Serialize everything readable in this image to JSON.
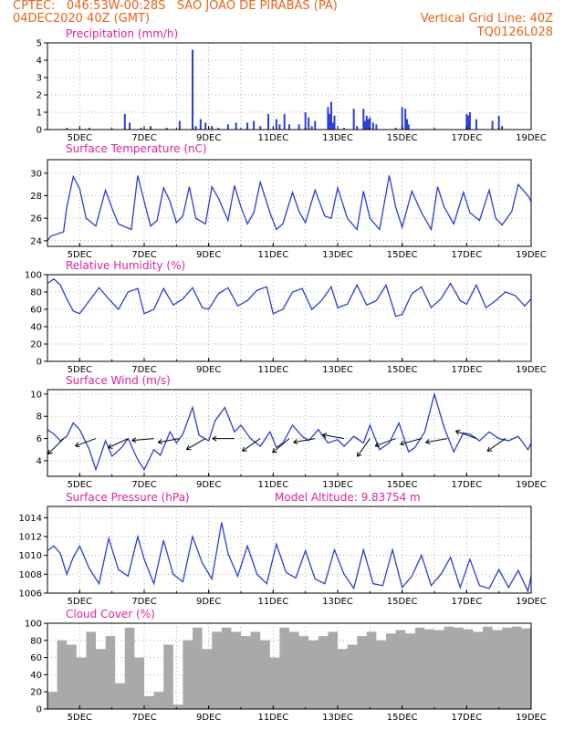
{
  "header": {
    "line1": "CPTEC:   046:53W-00:28S   SAO JOAO DE PIRABAS (PA)",
    "line2_left": "04DEC2020 40Z (GMT)",
    "line2_right": "Vertical Grid Line: 40Z",
    "code": "TQ0126L028",
    "model_altitude": "Model Altitude: 9.83754 m"
  },
  "colors": {
    "header": "#e8631a",
    "title": "#e0249a",
    "series": "#2a3fd4",
    "cloud": "#a9a9a9",
    "wind_arrow": "#000000"
  },
  "x_ticks": [
    "5DEC",
    "7DEC",
    "9DEC",
    "11DEC",
    "13DEC",
    "15DEC",
    "17DEC",
    "19DEC"
  ],
  "chart_data": [
    {
      "id": "precip",
      "type": "bar",
      "title": "Precipitation (mm/h)",
      "ylim": [
        0,
        5
      ],
      "yticks": [
        0,
        1,
        2,
        3,
        4,
        5
      ],
      "x_day_range": [
        4,
        19
      ],
      "x_ticks": [
        "5DEC",
        "7DEC",
        "9DEC",
        "11DEC",
        "13DEC",
        "15DEC",
        "17DEC",
        "19DEC"
      ],
      "series": [
        {
          "x": [
            4.6,
            5.3,
            6.4,
            6.55,
            6.9,
            7.2,
            7.7,
            8.1,
            8.5,
            8.6,
            8.75,
            8.9,
            9.1,
            9.3,
            9.6,
            9.85,
            10.2,
            10.4,
            10.6,
            10.85,
            11.1,
            11.2,
            11.35,
            11.5,
            11.8,
            12.0,
            12.1,
            12.2,
            12.3,
            12.7,
            12.75,
            12.8,
            12.85,
            12.9,
            13.2,
            13.5,
            13.6,
            13.8,
            13.85,
            13.9,
            13.95,
            14.0,
            14.1,
            14.2,
            14.8,
            15.0,
            15.1,
            15.15,
            15.2,
            17.0,
            17.05,
            17.1,
            17.3,
            17.8,
            18.0,
            18.1
          ],
          "values": [
            0.1,
            0.1,
            0.9,
            0.4,
            0.1,
            0.2,
            0.1,
            0.5,
            4.6,
            0.2,
            0.6,
            0.4,
            0.2,
            0.1,
            0.3,
            0.4,
            0.4,
            0.5,
            0.2,
            0.9,
            0.6,
            0.3,
            0.9,
            0.3,
            0.3,
            1.0,
            0.7,
            0.2,
            0.5,
            1.3,
            0.9,
            1.6,
            0.4,
            0.8,
            0.1,
            1.2,
            0.2,
            1.2,
            0.5,
            0.8,
            0.6,
            0.7,
            0.4,
            0.3,
            0.1,
            1.3,
            1.2,
            0.6,
            0.3,
            0.9,
            0.8,
            1.0,
            0.6,
            0.5,
            0.8,
            0.2
          ]
        }
      ]
    },
    {
      "id": "temp",
      "type": "line",
      "title": "Surface Temperature (nC)",
      "ylim": [
        23.5,
        31.2
      ],
      "yticks": [
        24,
        26,
        28,
        30
      ],
      "x_day_range": [
        4,
        19
      ],
      "x_ticks": [
        "5DEC",
        "7DEC",
        "9DEC",
        "11DEC",
        "13DEC",
        "15DEC",
        "17DEC",
        "19DEC"
      ],
      "series": [
        {
          "x": [
            4.0,
            4.1,
            4.3,
            4.5,
            4.6,
            4.8,
            5.0,
            5.2,
            5.5,
            5.8,
            6.0,
            6.2,
            6.6,
            6.8,
            7.0,
            7.2,
            7.4,
            7.6,
            7.8,
            8.0,
            8.2,
            8.4,
            8.6,
            8.9,
            9.1,
            9.3,
            9.6,
            9.8,
            10.0,
            10.2,
            10.4,
            10.6,
            10.9,
            11.1,
            11.3,
            11.6,
            11.8,
            12.0,
            12.3,
            12.6,
            12.8,
            13.0,
            13.3,
            13.6,
            13.8,
            14.0,
            14.3,
            14.6,
            14.8,
            15.0,
            15.3,
            15.6,
            15.9,
            16.1,
            16.3,
            16.6,
            16.9,
            17.1,
            17.4,
            17.7,
            17.9,
            18.1,
            18.4,
            18.6,
            18.9,
            19.0
          ],
          "values": [
            24.0,
            24.4,
            24.6,
            24.8,
            27.0,
            29.7,
            28.6,
            26.0,
            25.3,
            28.5,
            26.9,
            25.5,
            25.0,
            29.8,
            27.5,
            25.3,
            25.8,
            28.7,
            27.5,
            25.6,
            26.2,
            28.8,
            26.0,
            25.5,
            28.8,
            27.8,
            25.8,
            28.9,
            27.0,
            25.5,
            26.5,
            29.2,
            26.5,
            25.0,
            25.5,
            28.3,
            26.6,
            25.6,
            28.5,
            26.2,
            26.0,
            28.7,
            26.0,
            25.0,
            28.4,
            26.0,
            25.0,
            29.8,
            27.0,
            25.2,
            28.4,
            26.5,
            25.0,
            28.8,
            27.0,
            25.5,
            28.3,
            26.5,
            25.8,
            28.5,
            26.0,
            25.4,
            26.6,
            29.0,
            28.0,
            27.5
          ]
        }
      ]
    },
    {
      "id": "rh",
      "type": "line",
      "title": "Relative Humidity (%)",
      "ylim": [
        0,
        100
      ],
      "yticks": [
        0,
        20,
        40,
        60,
        80,
        100
      ],
      "x_day_range": [
        4,
        19
      ],
      "x_ticks": [
        "5DEC",
        "7DEC",
        "9DEC",
        "11DEC",
        "13DEC",
        "15DEC",
        "17DEC",
        "19DEC"
      ],
      "series": [
        {
          "x": [
            4.0,
            4.2,
            4.4,
            4.6,
            4.8,
            5.0,
            5.3,
            5.6,
            5.9,
            6.2,
            6.5,
            6.8,
            7.0,
            7.3,
            7.6,
            7.9,
            8.2,
            8.5,
            8.8,
            9.0,
            9.3,
            9.6,
            9.9,
            10.2,
            10.5,
            10.8,
            11.0,
            11.3,
            11.6,
            11.9,
            12.2,
            12.5,
            12.8,
            13.0,
            13.3,
            13.6,
            13.9,
            14.2,
            14.5,
            14.8,
            15.0,
            15.3,
            15.6,
            15.9,
            16.2,
            16.5,
            16.8,
            17.0,
            17.3,
            17.6,
            17.9,
            18.2,
            18.5,
            18.8,
            19.0
          ],
          "values": [
            90,
            95,
            88,
            72,
            58,
            55,
            70,
            85,
            72,
            60,
            80,
            84,
            55,
            60,
            84,
            65,
            72,
            85,
            62,
            60,
            78,
            85,
            64,
            70,
            82,
            86,
            55,
            60,
            80,
            84,
            60,
            70,
            86,
            62,
            66,
            88,
            65,
            70,
            88,
            52,
            54,
            78,
            86,
            62,
            72,
            90,
            70,
            66,
            88,
            62,
            70,
            80,
            76,
            64,
            72
          ]
        }
      ]
    },
    {
      "id": "wind",
      "type": "line",
      "title": "Surface Wind (m/s)",
      "ylim": [
        2.6,
        10.4
      ],
      "yticks": [
        4,
        6,
        8,
        10
      ],
      "x_day_range": [
        4,
        19
      ],
      "x_ticks": [
        "5DEC",
        "7DEC",
        "9DEC",
        "11DEC",
        "13DEC",
        "15DEC",
        "17DEC",
        "19DEC"
      ],
      "series": [
        {
          "x": [
            4.0,
            4.2,
            4.4,
            4.6,
            4.8,
            5.0,
            5.3,
            5.5,
            5.8,
            6.0,
            6.3,
            6.5,
            6.8,
            7.0,
            7.3,
            7.5,
            7.8,
            8.0,
            8.2,
            8.5,
            8.7,
            9.0,
            9.2,
            9.5,
            9.8,
            10.0,
            10.3,
            10.6,
            10.9,
            11.1,
            11.3,
            11.6,
            11.9,
            12.1,
            12.4,
            12.7,
            13.0,
            13.2,
            13.5,
            13.8,
            14.0,
            14.3,
            14.6,
            14.9,
            15.2,
            15.4,
            15.7,
            16.0,
            16.3,
            16.6,
            16.9,
            17.1,
            17.4,
            17.7,
            18.0,
            18.3,
            18.6,
            18.9,
            19.0
          ],
          "values": [
            6.8,
            6.4,
            5.8,
            6.2,
            7.4,
            6.8,
            5.0,
            3.2,
            5.8,
            4.4,
            5.2,
            6.0,
            4.1,
            3.2,
            5.0,
            4.5,
            6.6,
            5.6,
            6.4,
            8.8,
            6.3,
            5.8,
            7.6,
            8.8,
            6.6,
            7.2,
            6.0,
            5.3,
            6.6,
            5.2,
            5.6,
            7.2,
            6.2,
            5.8,
            6.8,
            5.6,
            5.9,
            5.3,
            6.2,
            5.6,
            7.2,
            5.0,
            5.6,
            7.4,
            4.8,
            5.2,
            6.6,
            10.0,
            7.0,
            4.8,
            6.5,
            6.4,
            5.8,
            6.6,
            6.0,
            5.8,
            6.2,
            5.0,
            5.6
          ]
        }
      ],
      "arrows": [
        {
          "x": 4.5,
          "angle": 225
        },
        {
          "x": 5.5,
          "angle": 200
        },
        {
          "x": 6.5,
          "angle": 205
        },
        {
          "x": 7.3,
          "angle": 185
        },
        {
          "x": 8.1,
          "angle": 190
        },
        {
          "x": 8.9,
          "angle": 210
        },
        {
          "x": 9.8,
          "angle": 180
        },
        {
          "x": 10.6,
          "angle": 215
        },
        {
          "x": 11.5,
          "angle": 220
        },
        {
          "x": 12.3,
          "angle": 190
        },
        {
          "x": 13.2,
          "angle": 170
        },
        {
          "x": 14.0,
          "angle": 235
        },
        {
          "x": 14.8,
          "angle": 200
        },
        {
          "x": 15.6,
          "angle": 195
        },
        {
          "x": 16.4,
          "angle": 190
        },
        {
          "x": 17.3,
          "angle": 160
        },
        {
          "x": 18.2,
          "angle": 215
        }
      ]
    },
    {
      "id": "pres",
      "type": "line",
      "title": "Surface Pressure (hPa)",
      "ylim": [
        1006,
        1015.2
      ],
      "yticks": [
        1006,
        1008,
        1010,
        1012,
        1014
      ],
      "x_day_range": [
        4,
        19
      ],
      "x_ticks": [
        "5DEC",
        "7DEC",
        "9DEC",
        "11DEC",
        "13DEC",
        "15DEC",
        "17DEC",
        "19DEC"
      ],
      "series": [
        {
          "x": [
            4.0,
            4.2,
            4.4,
            4.6,
            4.8,
            5.0,
            5.3,
            5.6,
            5.9,
            6.2,
            6.5,
            6.8,
            7.0,
            7.3,
            7.6,
            7.9,
            8.2,
            8.5,
            8.8,
            9.1,
            9.4,
            9.6,
            9.9,
            10.2,
            10.5,
            10.8,
            11.1,
            11.4,
            11.7,
            12.0,
            12.3,
            12.6,
            12.9,
            13.2,
            13.5,
            13.8,
            14.1,
            14.4,
            14.7,
            15.0,
            15.3,
            15.6,
            15.9,
            16.2,
            16.5,
            16.8,
            17.1,
            17.4,
            17.7,
            18.0,
            18.3,
            18.6,
            18.9,
            19.0
          ],
          "values": [
            1010.5,
            1011.0,
            1010.2,
            1008.0,
            1009.8,
            1011.0,
            1008.6,
            1007.0,
            1011.8,
            1008.5,
            1007.8,
            1012.0,
            1009.6,
            1007.0,
            1011.6,
            1008.0,
            1007.2,
            1012.0,
            1009.2,
            1007.5,
            1013.5,
            1010.2,
            1007.8,
            1011.0,
            1008.0,
            1007.0,
            1011.2,
            1008.2,
            1007.6,
            1010.5,
            1007.5,
            1007.0,
            1010.6,
            1008.0,
            1006.5,
            1010.6,
            1007.0,
            1006.8,
            1010.6,
            1006.6,
            1007.8,
            1010.0,
            1006.8,
            1008.0,
            1009.8,
            1006.6,
            1009.6,
            1006.8,
            1006.5,
            1008.5,
            1006.6,
            1008.4,
            1006.2,
            1007.8
          ]
        }
      ]
    },
    {
      "id": "cloud",
      "type": "bar",
      "title": "Cloud Cover (%)",
      "ylim": [
        0,
        100
      ],
      "yticks": [
        0,
        20,
        40,
        60,
        80,
        100
      ],
      "x_day_range": [
        4,
        19
      ],
      "x_ticks": [
        "5DEC",
        "7DEC",
        "9DEC",
        "11DEC",
        "13DEC",
        "15DEC",
        "17DEC",
        "19DEC"
      ],
      "series": [
        {
          "x": [
            4.0,
            4.3,
            4.6,
            4.9,
            5.2,
            5.5,
            5.8,
            6.1,
            6.4,
            6.7,
            7.0,
            7.3,
            7.6,
            7.9,
            8.2,
            8.5,
            8.8,
            9.1,
            9.4,
            9.7,
            10.0,
            10.3,
            10.6,
            10.9,
            11.2,
            11.5,
            11.8,
            12.1,
            12.4,
            12.7,
            13.0,
            13.3,
            13.6,
            13.9,
            14.2,
            14.5,
            14.8,
            15.1,
            15.4,
            15.7,
            16.0,
            16.3,
            16.6,
            16.9,
            17.2,
            17.5,
            17.8,
            18.1,
            18.4,
            18.7,
            19.0
          ],
          "values": [
            20,
            80,
            75,
            60,
            90,
            70,
            85,
            30,
            95,
            60,
            15,
            20,
            75,
            5,
            80,
            95,
            70,
            90,
            95,
            90,
            85,
            90,
            80,
            60,
            95,
            90,
            85,
            80,
            85,
            90,
            70,
            75,
            85,
            90,
            80,
            88,
            92,
            88,
            95,
            93,
            92,
            96,
            95,
            93,
            90,
            96,
            92,
            95,
            96,
            94,
            93
          ]
        }
      ]
    }
  ]
}
